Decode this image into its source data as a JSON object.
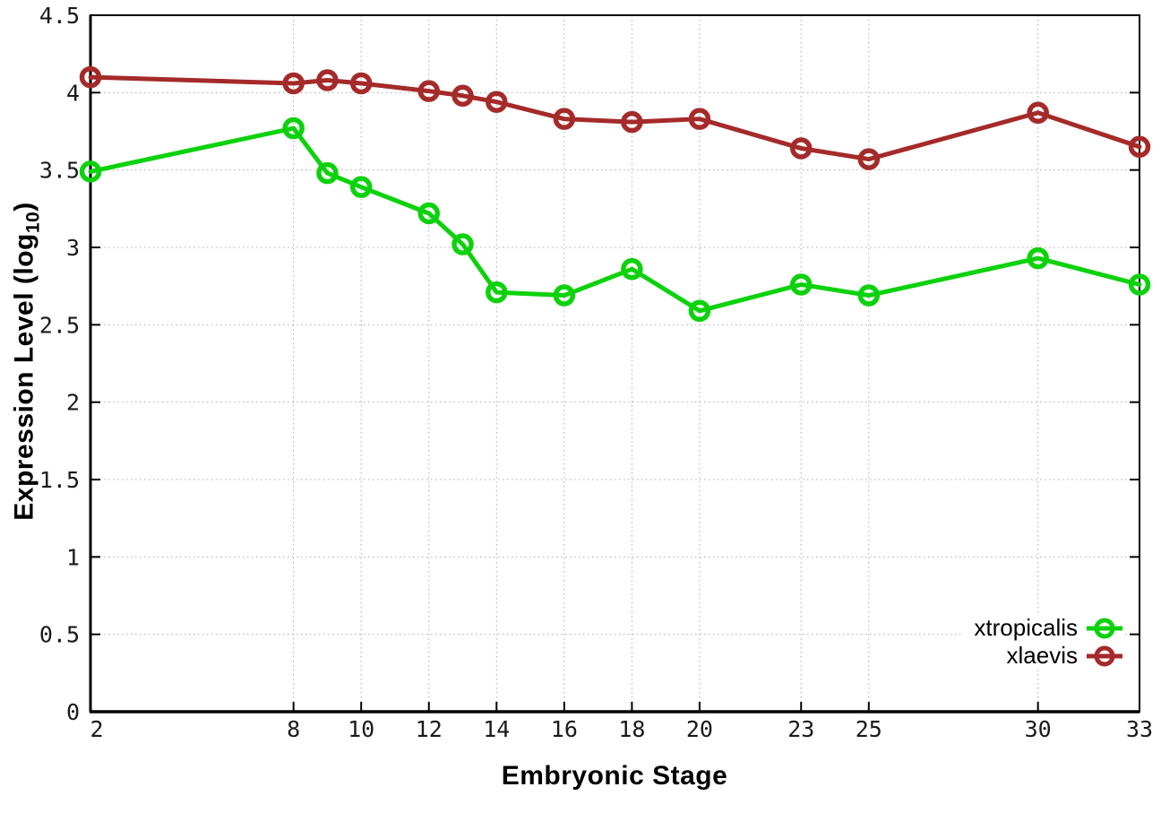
{
  "chart_data": {
    "type": "line",
    "title": "",
    "xlabel": "Embryonic Stage",
    "ylabel": "Expression Level (log10)",
    "xlim": [
      2,
      33
    ],
    "ylim": [
      0,
      4.5
    ],
    "grid": true,
    "legend_position": "bottom-right",
    "x": [
      2,
      8,
      9,
      10,
      12,
      13,
      14,
      16,
      18,
      20,
      23,
      25,
      30,
      33
    ],
    "x_ticks": {
      "values": [
        2,
        8,
        10,
        12,
        14,
        16,
        18,
        20,
        23,
        25,
        30,
        33
      ],
      "labels": [
        "2",
        "8",
        "10",
        "12",
        "14",
        "16",
        "18",
        "20",
        "23",
        "25",
        "30",
        "33"
      ]
    },
    "y_ticks": {
      "values": [
        0,
        0.5,
        1,
        1.5,
        2,
        2.5,
        3,
        3.5,
        4,
        4.5
      ],
      "labels": [
        "0",
        "0.5",
        "1",
        "1.5",
        "2",
        "2.5",
        "3",
        "3.5",
        "4",
        "4.5"
      ]
    },
    "series": [
      {
        "name": "xtropicalis",
        "color": "#0cd20c",
        "values": [
          3.49,
          3.77,
          3.48,
          3.39,
          3.22,
          3.02,
          2.71,
          2.69,
          2.86,
          2.59,
          2.76,
          2.69,
          2.93,
          2.76
        ]
      },
      {
        "name": "xlaevis",
        "color": "#a52a2a",
        "values": [
          4.1,
          4.06,
          4.08,
          4.06,
          4.01,
          3.98,
          3.94,
          3.83,
          3.81,
          3.83,
          3.64,
          3.57,
          3.87,
          3.65
        ]
      }
    ]
  },
  "axes": {
    "x_title": "Embryonic Stage",
    "y_title_prefix": "Expression Level (log",
    "y_title_sub": "10",
    "y_title_suffix": ")"
  },
  "legend": {
    "items": [
      {
        "label": "xtropicalis",
        "color": "#0cd20c"
      },
      {
        "label": "xlaevis",
        "color": "#a52a2a"
      }
    ]
  },
  "style": {
    "background": "#ffffff",
    "frame_color": "#000000",
    "grid_color": "#aaaaaa",
    "tick_label_color": "#1a1a1a"
  }
}
